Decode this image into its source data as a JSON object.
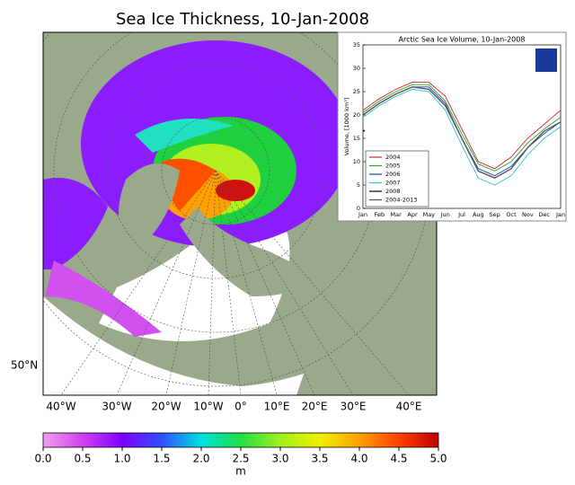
{
  "title": "Sea Ice Thickness, 10-Jan-2008",
  "map": {
    "lat_labels": [
      "50°N"
    ],
    "lon_labels": [
      "40°W",
      "30°W",
      "20°W",
      "10°W",
      "0°",
      "10°E",
      "20°E",
      "30°E",
      "40°E"
    ]
  },
  "colorbar": {
    "label": "m",
    "clim": [
      0,
      5
    ],
    "ticks": [
      {
        "value": 0,
        "label": "0.0"
      },
      {
        "value": 0.5,
        "label": "0.5"
      },
      {
        "value": 1,
        "label": "1.0"
      },
      {
        "value": 1.5,
        "label": "1.5"
      },
      {
        "value": 2,
        "label": "2.0"
      },
      {
        "value": 2.5,
        "label": "2.5"
      },
      {
        "value": 3,
        "label": "3.0"
      },
      {
        "value": 3.5,
        "label": "3.5"
      },
      {
        "value": 4,
        "label": "4.0"
      },
      {
        "value": 4.5,
        "label": "4.5"
      },
      {
        "value": 5,
        "label": "5.0"
      }
    ]
  },
  "chart_data": {
    "type": "line",
    "title": "Arctic Sea Ice Volume, 10-Jan-2008",
    "ylabel": "Volume, [1000 km³]",
    "categories": [
      "Jan",
      "Feb",
      "Mar",
      "Apr",
      "May",
      "Jun",
      "Jul",
      "Aug",
      "Sep",
      "Oct",
      "Nov",
      "Dec",
      "Jan"
    ],
    "ylim": [
      0,
      35
    ],
    "yticks": [
      0,
      5,
      10,
      15,
      20,
      25,
      30,
      35
    ],
    "series": [
      {
        "name": "2004",
        "color": "#d62728",
        "values": [
          21,
          23.5,
          25.5,
          27,
          27,
          24,
          17,
          10,
          8.5,
          11,
          15,
          18,
          21
        ]
      },
      {
        "name": "2005",
        "color": "#2ca02c",
        "values": [
          20.5,
          23,
          25,
          26.5,
          26.5,
          23,
          16,
          9.5,
          8,
          10,
          14,
          17,
          19.5
        ]
      },
      {
        "name": "2006",
        "color": "#1f3fbf",
        "values": [
          20,
          22.5,
          24.5,
          26,
          26,
          22.5,
          15,
          8.5,
          7,
          9,
          13,
          16,
          18.5
        ]
      },
      {
        "name": "2007",
        "color": "#30c0d0",
        "values": [
          19.5,
          22,
          24,
          25.5,
          25,
          21,
          13.5,
          6.5,
          5,
          7,
          11.5,
          15,
          17.5
        ]
      },
      {
        "name": "2008",
        "color": "#000000",
        "values": [
          16.5,
          null,
          null,
          null,
          null,
          null,
          null,
          null,
          null,
          null,
          null,
          null,
          null
        ]
      },
      {
        "name": "2004-2013",
        "color": "#555555",
        "values": [
          20,
          22.5,
          24.5,
          26,
          25.5,
          22,
          15,
          8,
          6.5,
          8.5,
          13,
          16.5,
          18.5
        ]
      }
    ]
  }
}
